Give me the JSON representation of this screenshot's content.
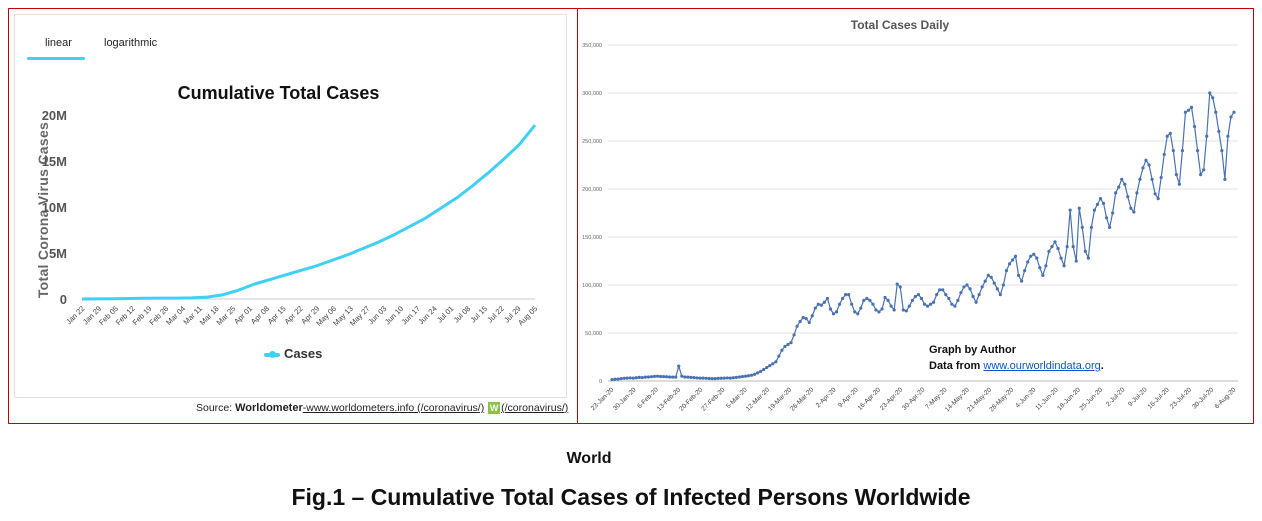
{
  "left_panel": {
    "tabs": [
      {
        "label": "linear"
      },
      {
        "label": "logarithmic"
      }
    ],
    "source": {
      "prefix": "Source: ",
      "brand": "Worldometer",
      "link1": "-www.worldometers.info (/coronavirus/)",
      "logo": "W",
      "link2": "(/coronavirus/)"
    }
  },
  "right_panel": {
    "annotation_line1": "Graph by Author",
    "annotation_line2_prefix": "Data from ",
    "annotation_link": "www.ourworldindata.org",
    "annotation_suffix": "."
  },
  "captions": {
    "world": "World",
    "figure": "Fig.1 – Cumulative Total Cases of Infected Persons Worldwide"
  },
  "colors": {
    "cyan": "#3fd0f7",
    "blue": "#4a72b0",
    "frame": "#c00000"
  },
  "chart_data": [
    {
      "type": "line",
      "title": "Cumulative Total Cases",
      "ylabel": "Total Corona Virus Cases",
      "xlabel": "",
      "ylim": [
        0,
        20000000
      ],
      "yticks": [
        0,
        5000000,
        10000000,
        15000000,
        20000000
      ],
      "yticklabels": [
        "0",
        "5M",
        "10M",
        "15M",
        "20M"
      ],
      "xticklabels": [
        "Jan 22",
        "Jan 29",
        "Feb 05",
        "Feb 12",
        "Feb 19",
        "Feb 26",
        "Mar 04",
        "Mar 11",
        "Mar 18",
        "Mar 25",
        "Apr 01",
        "Apr 08",
        "Apr 15",
        "Apr 22",
        "Apr 29",
        "May 06",
        "May 13",
        "May 27",
        "Jun 03",
        "Jun 10",
        "Jun 17",
        "Jun 24",
        "Jul 01",
        "Jul 08",
        "Jul 15",
        "Jul 22",
        "Jul 29",
        "Aug 05"
      ],
      "legend": "bottom",
      "series": [
        {
          "name": "Cases",
          "values": [
            0,
            0.01,
            0.03,
            0.05,
            0.08,
            0.1,
            0.1,
            0.12,
            0.2,
            0.45,
            0.95,
            1.6,
            2.1,
            2.6,
            3.1,
            3.6,
            4.2,
            4.8,
            5.5,
            6.2,
            7.0,
            7.9,
            8.8,
            9.9,
            11.0,
            12.3,
            13.7,
            15.2,
            16.8,
            18.9
          ]
        }
      ],
      "series_units": "millions",
      "grid": false
    },
    {
      "type": "line",
      "title": "Total Cases Daily",
      "xlabel": "",
      "ylabel": "",
      "ylim": [
        0,
        350000
      ],
      "yticks": [
        0,
        50000,
        100000,
        150000,
        200000,
        250000,
        300000,
        350000
      ],
      "yticklabels": [
        "0",
        "50,000",
        "100,000",
        "150,000",
        "200,000",
        "250,000",
        "300,000",
        "350,000"
      ],
      "xticklabels": [
        "23-Jan-20",
        "30-Jan-20",
        "6-Feb-20",
        "13-Feb-20",
        "20-Feb-20",
        "27-Feb-20",
        "5-Mar-20",
        "12-Mar-20",
        "19-Mar-20",
        "26-Mar-20",
        "2-Apr-20",
        "9-Apr-20",
        "16-Apr-20",
        "23-Apr-20",
        "30-Apr-20",
        "7-May-20",
        "14-May-20",
        "21-May-20",
        "28-May-20",
        "4-Jun-20",
        "11-Jun-20",
        "18-Jun-20",
        "25-Jun-20",
        "2-Jul-20",
        "9-Jul-20",
        "16-Jul-20",
        "23-Jul-20",
        "30-Jul-20",
        "6-Aug-20"
      ],
      "grid": true,
      "series": [
        {
          "values": [
            1500,
            1800,
            2000,
            2500,
            2800,
            3000,
            3200,
            3000,
            3400,
            3800,
            3600,
            4000,
            4200,
            4500,
            4800,
            5000,
            4700,
            4600,
            4400,
            4200,
            4100,
            4000,
            15500,
            5000,
            4200,
            4000,
            3800,
            3500,
            3200,
            3000,
            3000,
            2800,
            2600,
            2500,
            2500,
            2700,
            2900,
            3000,
            3200,
            3000,
            3400,
            3800,
            4200,
            4600,
            5000,
            5500,
            6000,
            7000,
            8500,
            10000,
            12000,
            14000,
            16000,
            18000,
            20000,
            26000,
            32000,
            36000,
            38000,
            40000,
            48000,
            57000,
            62000,
            66000,
            65000,
            61000,
            68000,
            76000,
            80000,
            79000,
            82000,
            86000,
            75000,
            70000,
            72000,
            80000,
            86000,
            90000,
            90000,
            80000,
            72000,
            70000,
            76000,
            84000,
            86000,
            84000,
            80000,
            74000,
            72000,
            75000,
            87000,
            84000,
            78000,
            74000,
            101000,
            98000,
            74000,
            73000,
            78000,
            84000,
            88000,
            90000,
            86000,
            80000,
            78000,
            80000,
            82000,
            90000,
            95000,
            95000,
            90000,
            86000,
            80000,
            78000,
            84000,
            92000,
            98000,
            100000,
            96000,
            88000,
            82000,
            90000,
            98000,
            104000,
            110000,
            108000,
            102000,
            96000,
            90000,
            100000,
            115000,
            122000,
            126000,
            130000,
            110000,
            104000,
            115000,
            124000,
            130000,
            132000,
            128000,
            118000,
            110000,
            120000,
            135000,
            140000,
            145000,
            138000,
            128000,
            120000,
            140000,
            178000,
            140000,
            125000,
            180000,
            160000,
            135000,
            128000,
            160000,
            178000,
            184000,
            190000,
            185000,
            170000,
            160000,
            175000,
            196000,
            202000,
            210000,
            205000,
            192000,
            180000,
            176000,
            196000,
            210000,
            222000,
            230000,
            225000,
            210000,
            195000,
            190000,
            212000,
            236000,
            255000,
            258000,
            240000,
            215000,
            205000,
            240000,
            280000,
            282000,
            285000,
            265000,
            240000,
            215000,
            220000,
            255000,
            300000,
            295000,
            280000,
            260000,
            240000,
            210000,
            255000,
            275000,
            280000
          ]
        }
      ]
    }
  ]
}
